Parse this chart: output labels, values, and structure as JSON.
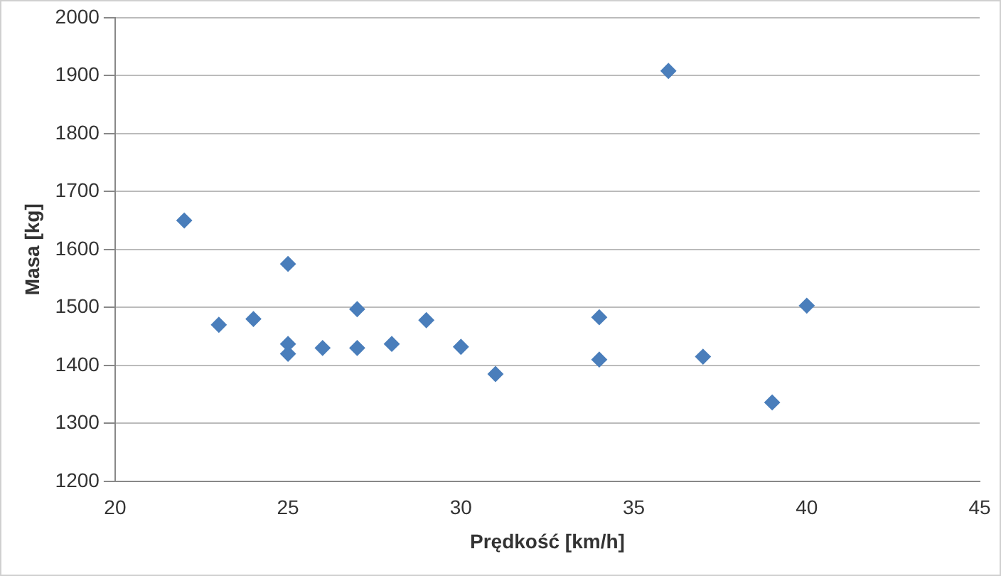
{
  "chart_data": {
    "type": "scatter",
    "xlabel": "Prędkość [km/h]",
    "ylabel": "Masa [kg]",
    "x": [
      22,
      23,
      24,
      25,
      25,
      25,
      26,
      27,
      27,
      28,
      29,
      30,
      31,
      34,
      34,
      36,
      37,
      39,
      40
    ],
    "series": [
      {
        "color": "#4a7ebb",
        "values": [
          1650,
          1470,
          1480,
          1575,
          1437,
          1420,
          1430,
          1497,
          1430,
          1437,
          1478,
          1432,
          1385,
          1483,
          1410,
          1908,
          1415,
          1336,
          1503
        ]
      }
    ],
    "xlim": [
      20,
      45
    ],
    "xticks": [
      20,
      25,
      30,
      35,
      40,
      45
    ],
    "ylim": [
      1200,
      2000
    ],
    "yticks": [
      1200,
      1300,
      1400,
      1500,
      1600,
      1700,
      1800,
      1900,
      2000
    ],
    "grid": "y",
    "legend": false,
    "marker": "diamond"
  }
}
